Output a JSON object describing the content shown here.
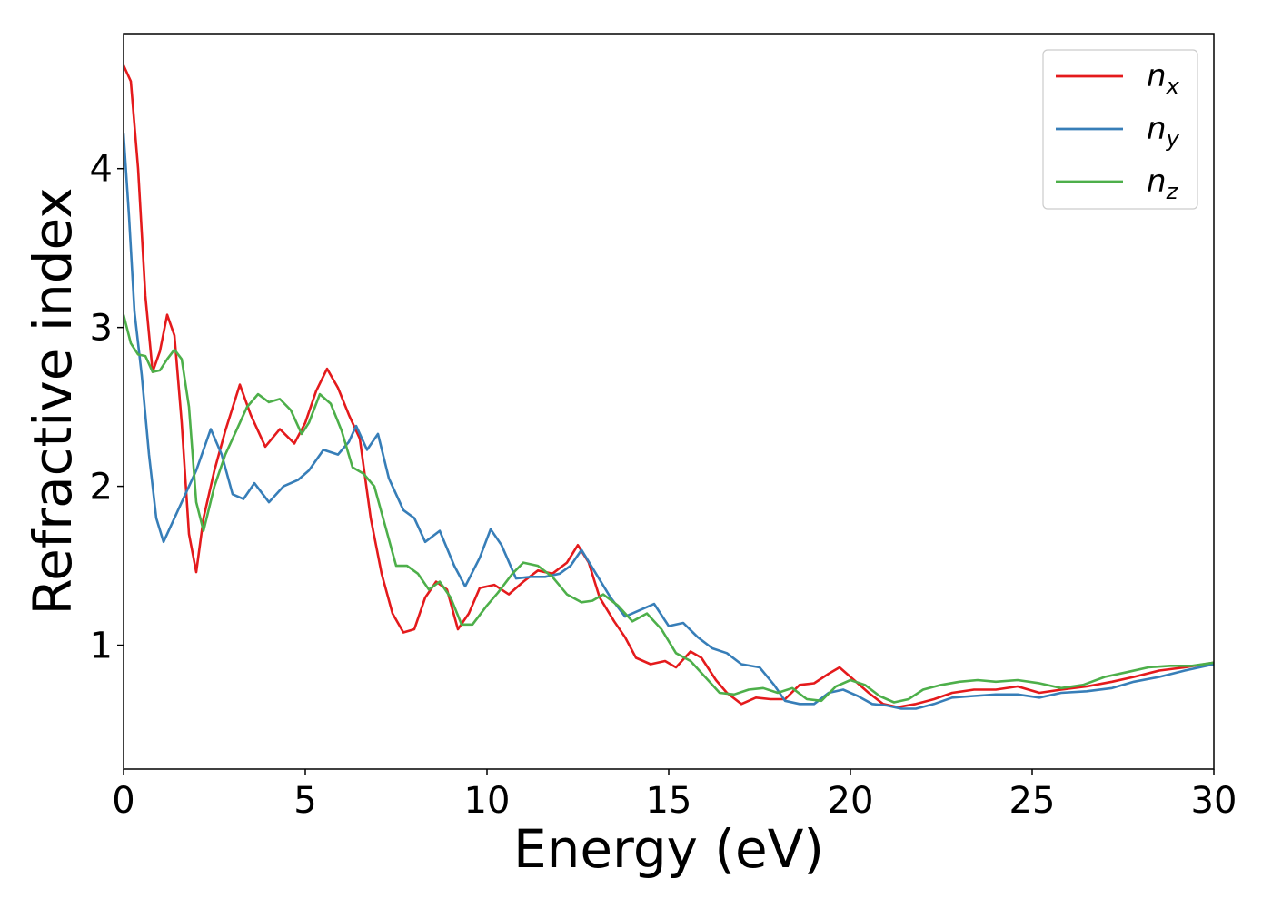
{
  "chart_data": {
    "type": "line",
    "title": "",
    "xlabel": "Energy (eV)",
    "ylabel": "Refractive index",
    "xlim": [
      0,
      30
    ],
    "ylim": [
      0.22,
      4.85
    ],
    "xticks": [
      0,
      5,
      10,
      15,
      20,
      25,
      30
    ],
    "yticks": [
      1,
      2,
      3,
      4
    ],
    "grid": false,
    "legend_position": "top-right",
    "series": [
      {
        "name": "n",
        "subscript": "x",
        "color": "#e41a1c",
        "points": [
          [
            0,
            4.65
          ],
          [
            0.2,
            4.55
          ],
          [
            0.4,
            4.0
          ],
          [
            0.6,
            3.2
          ],
          [
            0.8,
            2.72
          ],
          [
            1.0,
            2.85
          ],
          [
            1.2,
            3.08
          ],
          [
            1.4,
            2.95
          ],
          [
            1.6,
            2.4
          ],
          [
            1.8,
            1.7
          ],
          [
            2.0,
            1.46
          ],
          [
            2.2,
            1.8
          ],
          [
            2.5,
            2.1
          ],
          [
            2.8,
            2.35
          ],
          [
            3.2,
            2.64
          ],
          [
            3.5,
            2.45
          ],
          [
            3.9,
            2.25
          ],
          [
            4.3,
            2.36
          ],
          [
            4.7,
            2.27
          ],
          [
            5.0,
            2.4
          ],
          [
            5.3,
            2.6
          ],
          [
            5.6,
            2.74
          ],
          [
            5.9,
            2.62
          ],
          [
            6.2,
            2.45
          ],
          [
            6.5,
            2.3
          ],
          [
            6.8,
            1.8
          ],
          [
            7.1,
            1.45
          ],
          [
            7.4,
            1.2
          ],
          [
            7.7,
            1.08
          ],
          [
            8.0,
            1.1
          ],
          [
            8.3,
            1.3
          ],
          [
            8.6,
            1.4
          ],
          [
            8.9,
            1.35
          ],
          [
            9.2,
            1.1
          ],
          [
            9.5,
            1.2
          ],
          [
            9.8,
            1.36
          ],
          [
            10.2,
            1.38
          ],
          [
            10.6,
            1.32
          ],
          [
            11.0,
            1.4
          ],
          [
            11.4,
            1.47
          ],
          [
            11.8,
            1.45
          ],
          [
            12.2,
            1.52
          ],
          [
            12.5,
            1.63
          ],
          [
            12.8,
            1.52
          ],
          [
            13.1,
            1.3
          ],
          [
            13.5,
            1.15
          ],
          [
            13.8,
            1.05
          ],
          [
            14.1,
            0.92
          ],
          [
            14.5,
            0.88
          ],
          [
            14.9,
            0.9
          ],
          [
            15.2,
            0.86
          ],
          [
            15.6,
            0.96
          ],
          [
            15.9,
            0.92
          ],
          [
            16.3,
            0.78
          ],
          [
            16.6,
            0.7
          ],
          [
            17.0,
            0.63
          ],
          [
            17.4,
            0.67
          ],
          [
            17.8,
            0.66
          ],
          [
            18.2,
            0.66
          ],
          [
            18.6,
            0.75
          ],
          [
            19.0,
            0.76
          ],
          [
            19.4,
            0.82
          ],
          [
            19.7,
            0.86
          ],
          [
            20.1,
            0.78
          ],
          [
            20.5,
            0.7
          ],
          [
            20.9,
            0.63
          ],
          [
            21.3,
            0.61
          ],
          [
            21.8,
            0.63
          ],
          [
            22.3,
            0.66
          ],
          [
            22.8,
            0.7
          ],
          [
            23.4,
            0.72
          ],
          [
            24.0,
            0.72
          ],
          [
            24.6,
            0.74
          ],
          [
            25.2,
            0.7
          ],
          [
            25.8,
            0.72
          ],
          [
            26.5,
            0.74
          ],
          [
            27.2,
            0.77
          ],
          [
            27.8,
            0.8
          ],
          [
            28.5,
            0.84
          ],
          [
            29.2,
            0.86
          ],
          [
            30.0,
            0.89
          ]
        ]
      },
      {
        "name": "n",
        "subscript": "y",
        "color": "#377eb8",
        "points": [
          [
            0,
            4.22
          ],
          [
            0.15,
            3.7
          ],
          [
            0.3,
            3.1
          ],
          [
            0.5,
            2.7
          ],
          [
            0.7,
            2.2
          ],
          [
            0.9,
            1.8
          ],
          [
            1.1,
            1.65
          ],
          [
            1.3,
            1.75
          ],
          [
            1.6,
            1.9
          ],
          [
            2.0,
            2.1
          ],
          [
            2.4,
            2.36
          ],
          [
            2.7,
            2.2
          ],
          [
            3.0,
            1.95
          ],
          [
            3.3,
            1.92
          ],
          [
            3.6,
            2.02
          ],
          [
            4.0,
            1.9
          ],
          [
            4.4,
            2.0
          ],
          [
            4.8,
            2.04
          ],
          [
            5.1,
            2.1
          ],
          [
            5.5,
            2.23
          ],
          [
            5.9,
            2.2
          ],
          [
            6.2,
            2.28
          ],
          [
            6.4,
            2.38
          ],
          [
            6.7,
            2.23
          ],
          [
            7.0,
            2.33
          ],
          [
            7.3,
            2.05
          ],
          [
            7.7,
            1.85
          ],
          [
            8.0,
            1.8
          ],
          [
            8.3,
            1.65
          ],
          [
            8.7,
            1.72
          ],
          [
            9.1,
            1.5
          ],
          [
            9.4,
            1.37
          ],
          [
            9.8,
            1.55
          ],
          [
            10.1,
            1.73
          ],
          [
            10.4,
            1.63
          ],
          [
            10.8,
            1.42
          ],
          [
            11.2,
            1.43
          ],
          [
            11.6,
            1.43
          ],
          [
            12.0,
            1.45
          ],
          [
            12.3,
            1.5
          ],
          [
            12.6,
            1.6
          ],
          [
            13.0,
            1.45
          ],
          [
            13.4,
            1.3
          ],
          [
            13.8,
            1.18
          ],
          [
            14.2,
            1.22
          ],
          [
            14.6,
            1.26
          ],
          [
            15.0,
            1.12
          ],
          [
            15.4,
            1.14
          ],
          [
            15.8,
            1.05
          ],
          [
            16.2,
            0.98
          ],
          [
            16.6,
            0.95
          ],
          [
            17.0,
            0.88
          ],
          [
            17.5,
            0.86
          ],
          [
            17.9,
            0.75
          ],
          [
            18.2,
            0.65
          ],
          [
            18.6,
            0.63
          ],
          [
            19.0,
            0.63
          ],
          [
            19.4,
            0.7
          ],
          [
            19.8,
            0.72
          ],
          [
            20.2,
            0.68
          ],
          [
            20.6,
            0.63
          ],
          [
            21.0,
            0.62
          ],
          [
            21.4,
            0.6
          ],
          [
            21.8,
            0.6
          ],
          [
            22.3,
            0.63
          ],
          [
            22.8,
            0.67
          ],
          [
            23.4,
            0.68
          ],
          [
            24.0,
            0.69
          ],
          [
            24.6,
            0.69
          ],
          [
            25.2,
            0.67
          ],
          [
            25.8,
            0.7
          ],
          [
            26.5,
            0.71
          ],
          [
            27.2,
            0.73
          ],
          [
            27.8,
            0.77
          ],
          [
            28.5,
            0.8
          ],
          [
            29.2,
            0.84
          ],
          [
            30.0,
            0.88
          ]
        ]
      },
      {
        "name": "n",
        "subscript": "z",
        "color": "#4daf4a",
        "points": [
          [
            0,
            3.08
          ],
          [
            0.2,
            2.9
          ],
          [
            0.4,
            2.83
          ],
          [
            0.6,
            2.82
          ],
          [
            0.8,
            2.72
          ],
          [
            1.0,
            2.73
          ],
          [
            1.2,
            2.8
          ],
          [
            1.4,
            2.86
          ],
          [
            1.6,
            2.8
          ],
          [
            1.8,
            2.5
          ],
          [
            2.0,
            1.9
          ],
          [
            2.2,
            1.72
          ],
          [
            2.5,
            2.0
          ],
          [
            2.8,
            2.2
          ],
          [
            3.1,
            2.35
          ],
          [
            3.4,
            2.5
          ],
          [
            3.7,
            2.58
          ],
          [
            4.0,
            2.53
          ],
          [
            4.3,
            2.55
          ],
          [
            4.6,
            2.48
          ],
          [
            4.9,
            2.33
          ],
          [
            5.1,
            2.4
          ],
          [
            5.4,
            2.58
          ],
          [
            5.7,
            2.52
          ],
          [
            6.0,
            2.35
          ],
          [
            6.3,
            2.12
          ],
          [
            6.6,
            2.08
          ],
          [
            6.9,
            2.0
          ],
          [
            7.2,
            1.75
          ],
          [
            7.5,
            1.5
          ],
          [
            7.8,
            1.5
          ],
          [
            8.1,
            1.45
          ],
          [
            8.4,
            1.35
          ],
          [
            8.7,
            1.4
          ],
          [
            9.0,
            1.3
          ],
          [
            9.3,
            1.13
          ],
          [
            9.6,
            1.13
          ],
          [
            10.0,
            1.25
          ],
          [
            10.3,
            1.33
          ],
          [
            10.7,
            1.45
          ],
          [
            11.0,
            1.52
          ],
          [
            11.4,
            1.5
          ],
          [
            11.8,
            1.43
          ],
          [
            12.2,
            1.32
          ],
          [
            12.6,
            1.27
          ],
          [
            12.9,
            1.28
          ],
          [
            13.2,
            1.32
          ],
          [
            13.6,
            1.25
          ],
          [
            14.0,
            1.15
          ],
          [
            14.4,
            1.2
          ],
          [
            14.8,
            1.1
          ],
          [
            15.2,
            0.95
          ],
          [
            15.6,
            0.9
          ],
          [
            16.0,
            0.8
          ],
          [
            16.4,
            0.7
          ],
          [
            16.8,
            0.69
          ],
          [
            17.2,
            0.72
          ],
          [
            17.6,
            0.73
          ],
          [
            18.0,
            0.7
          ],
          [
            18.4,
            0.73
          ],
          [
            18.8,
            0.66
          ],
          [
            19.2,
            0.65
          ],
          [
            19.6,
            0.74
          ],
          [
            20.0,
            0.78
          ],
          [
            20.4,
            0.75
          ],
          [
            20.8,
            0.68
          ],
          [
            21.2,
            0.64
          ],
          [
            21.6,
            0.66
          ],
          [
            22.0,
            0.72
          ],
          [
            22.5,
            0.75
          ],
          [
            23.0,
            0.77
          ],
          [
            23.5,
            0.78
          ],
          [
            24.0,
            0.77
          ],
          [
            24.6,
            0.78
          ],
          [
            25.2,
            0.76
          ],
          [
            25.8,
            0.73
          ],
          [
            26.4,
            0.75
          ],
          [
            27.0,
            0.8
          ],
          [
            27.6,
            0.83
          ],
          [
            28.2,
            0.86
          ],
          [
            28.8,
            0.87
          ],
          [
            29.4,
            0.87
          ],
          [
            30.0,
            0.89
          ]
        ]
      }
    ]
  }
}
